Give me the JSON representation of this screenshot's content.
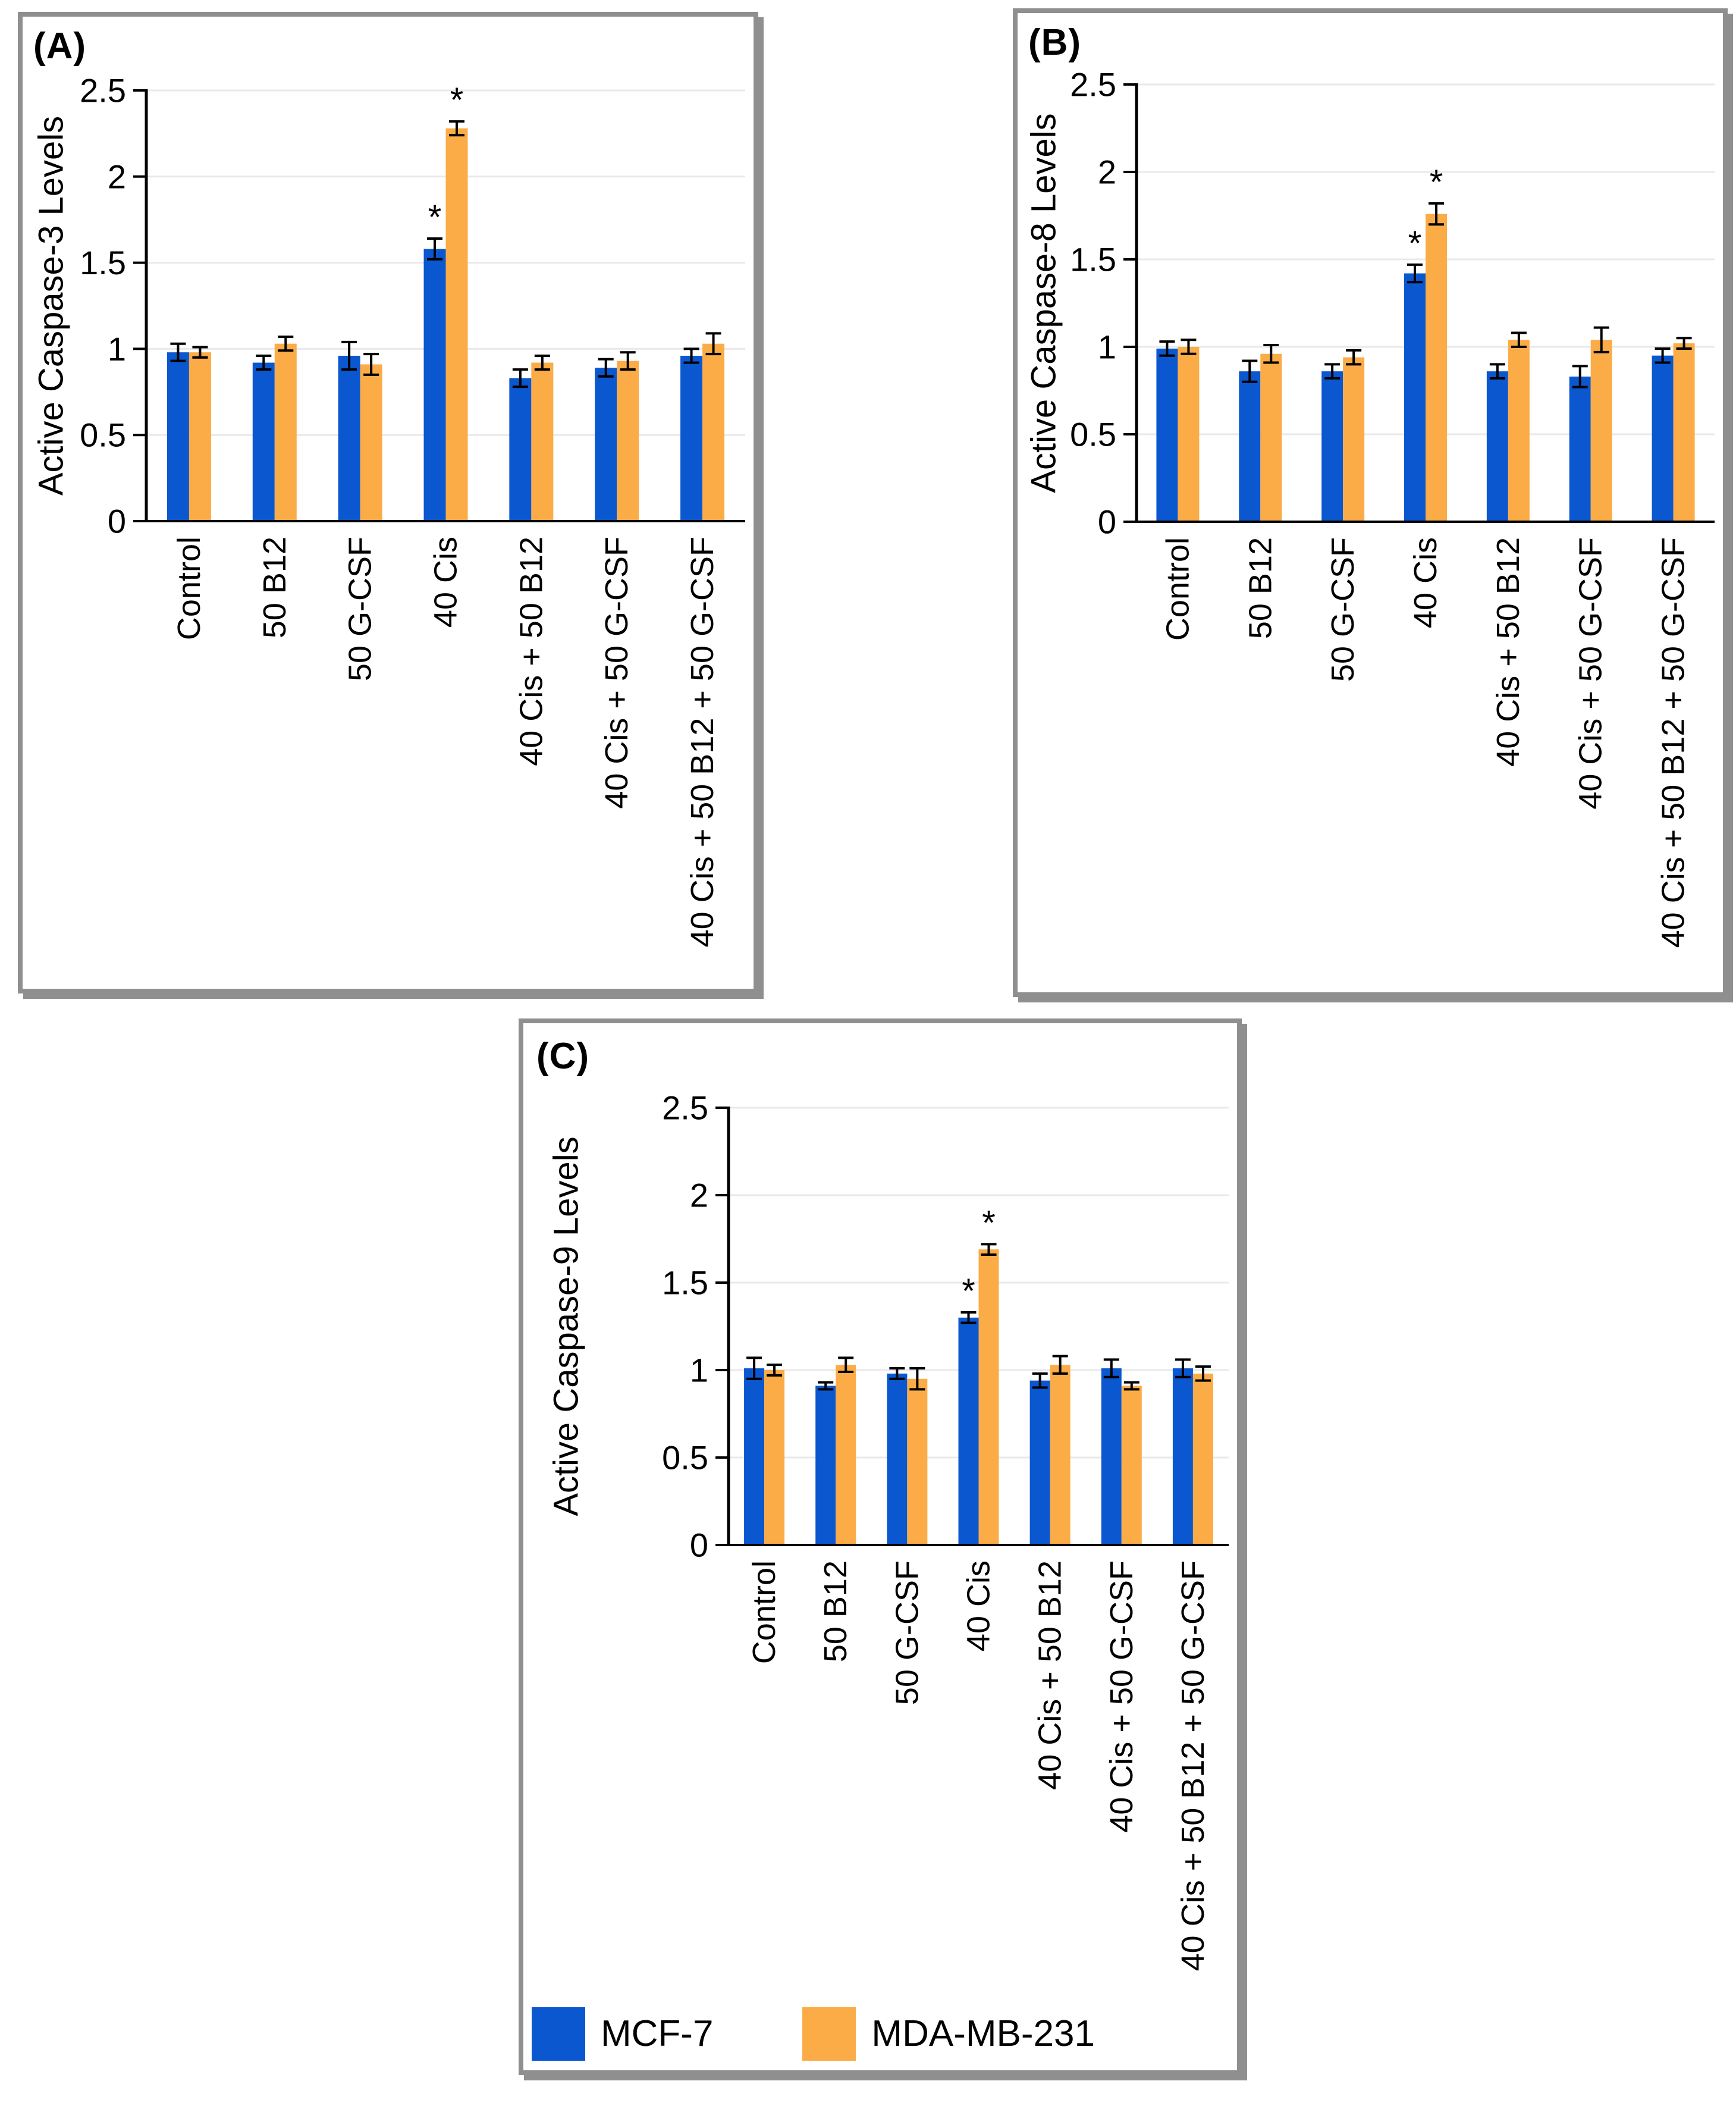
{
  "legend": {
    "items": [
      {
        "label": "MCF-7",
        "color": "#0b57d0"
      },
      {
        "label": "MDA-MB-231",
        "color": "#fbac47"
      }
    ]
  },
  "style": {
    "bar_blue": "#0b57d0",
    "bar_orange": "#fbac47",
    "gridline_color": "#e9e9e9",
    "axis_color": "#000000",
    "panel_border_color": "#8f8f8f",
    "significance_marker": "*"
  },
  "chart_data": [
    {
      "type": "bar",
      "panel_letter": "(A)",
      "ylabel": "Active Caspase-3 Levels",
      "xlabel": "",
      "ylim": [
        0,
        2.5
      ],
      "yticks": [
        0,
        0.5,
        1,
        1.5,
        2,
        2.5
      ],
      "grid": true,
      "legend_position": "none",
      "categories": [
        "Control",
        "50 B12",
        "50 G-CSF",
        "40 Cis",
        "40 Cis + 50 B12",
        "40 Cis + 50 G-CSF",
        "40 Cis + 50 B12 + 50 G-CSF"
      ],
      "series": [
        {
          "name": "MCF-7",
          "color": "#0b57d0",
          "values": [
            0.98,
            0.92,
            0.96,
            1.58,
            0.83,
            0.89,
            0.96
          ],
          "errors": [
            0.05,
            0.04,
            0.08,
            0.06,
            0.05,
            0.05,
            0.04
          ],
          "significant": [
            false,
            false,
            false,
            true,
            false,
            false,
            false
          ]
        },
        {
          "name": "MDA-MB-231",
          "color": "#fbac47",
          "values": [
            0.98,
            1.03,
            0.91,
            2.28,
            0.92,
            0.93,
            1.03
          ],
          "errors": [
            0.03,
            0.04,
            0.06,
            0.04,
            0.04,
            0.05,
            0.06
          ],
          "significant": [
            false,
            false,
            false,
            true,
            false,
            false,
            false
          ]
        }
      ]
    },
    {
      "type": "bar",
      "panel_letter": "(B)",
      "ylabel": "Active Caspase-8 Levels",
      "xlabel": "",
      "ylim": [
        0,
        2.5
      ],
      "yticks": [
        0,
        0.5,
        1,
        1.5,
        2,
        2.5
      ],
      "grid": true,
      "legend_position": "none",
      "categories": [
        "Control",
        "50 B12",
        "50 G-CSF",
        "40 Cis",
        "40 Cis + 50 B12",
        "40 Cis + 50 G-CSF",
        "40 Cis + 50 B12 + 50 G-CSF"
      ],
      "series": [
        {
          "name": "MCF-7",
          "color": "#0b57d0",
          "values": [
            0.99,
            0.86,
            0.86,
            1.42,
            0.86,
            0.83,
            0.95
          ],
          "errors": [
            0.04,
            0.06,
            0.04,
            0.05,
            0.04,
            0.06,
            0.04
          ],
          "significant": [
            false,
            false,
            false,
            true,
            false,
            false,
            false
          ]
        },
        {
          "name": "MDA-MB-231",
          "color": "#fbac47",
          "values": [
            1.0,
            0.96,
            0.94,
            1.76,
            1.04,
            1.04,
            1.02
          ],
          "errors": [
            0.04,
            0.05,
            0.04,
            0.06,
            0.04,
            0.07,
            0.03
          ],
          "significant": [
            false,
            false,
            false,
            true,
            false,
            false,
            false
          ]
        }
      ]
    },
    {
      "type": "bar",
      "panel_letter": "(C)",
      "ylabel": "Active Caspase-9 Levels",
      "xlabel": "",
      "ylim": [
        0,
        2.5
      ],
      "yticks": [
        0,
        0.5,
        1,
        1.5,
        2,
        2.5
      ],
      "grid": true,
      "legend_position": "bottom-left",
      "categories": [
        "Control",
        "50 B12",
        "50 G-CSF",
        "40 Cis",
        "40 Cis + 50 B12",
        "40 Cis + 50 G-CSF",
        "40 Cis + 50 B12 + 50 G-CSF"
      ],
      "series": [
        {
          "name": "MCF-7",
          "color": "#0b57d0",
          "values": [
            1.01,
            0.91,
            0.98,
            1.3,
            0.94,
            1.01,
            1.01
          ],
          "errors": [
            0.06,
            0.02,
            0.03,
            0.03,
            0.04,
            0.05,
            0.05
          ],
          "significant": [
            false,
            false,
            false,
            true,
            false,
            false,
            false
          ]
        },
        {
          "name": "MDA-MB-231",
          "color": "#fbac47",
          "values": [
            1.0,
            1.03,
            0.95,
            1.69,
            1.03,
            0.91,
            0.98
          ],
          "errors": [
            0.03,
            0.04,
            0.06,
            0.03,
            0.05,
            0.02,
            0.04
          ],
          "significant": [
            false,
            false,
            false,
            true,
            false,
            false,
            false
          ]
        }
      ]
    }
  ]
}
